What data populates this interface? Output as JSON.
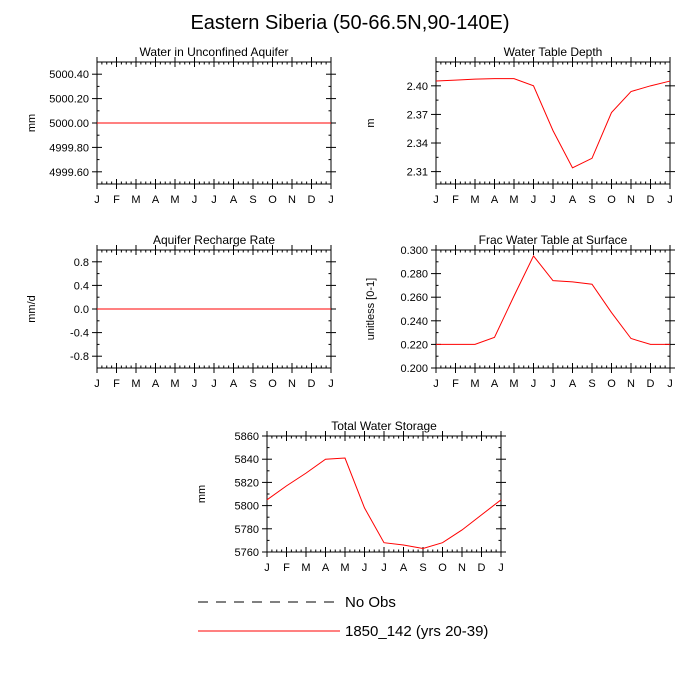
{
  "figure": {
    "title": "Eastern Siberia (50-66.5N,90-140E)"
  },
  "colors": {
    "model": "#ff0000",
    "obs": "#000000",
    "axis": "#000000"
  },
  "legend": {
    "entries": [
      {
        "label": "No Obs",
        "style": "dashed",
        "color": "#000000"
      },
      {
        "label": "1850_142 (yrs 20-39)",
        "style": "solid",
        "color": "#ff0000"
      }
    ]
  },
  "chart_data": [
    {
      "type": "line",
      "title": "Water in Unconfined Aquifer",
      "ylabel": "mm",
      "categories": [
        "J",
        "F",
        "M",
        "A",
        "M",
        "J",
        "J",
        "A",
        "S",
        "O",
        "N",
        "D",
        "J"
      ],
      "ylim": [
        4999.5,
        5000.5
      ],
      "yticks": [
        4999.6,
        4999.8,
        5000.0,
        5000.2,
        5000.4
      ],
      "yticklabels": [
        "4999.60",
        "4999.80",
        "5000.00",
        "5000.20",
        "5000.40"
      ],
      "series": [
        {
          "values": [
            5000.0,
            5000.0,
            5000.0,
            5000.0,
            5000.0,
            5000.0,
            5000.0,
            5000.0,
            5000.0,
            5000.0,
            5000.0,
            5000.0,
            5000.0
          ]
        }
      ]
    },
    {
      "type": "line",
      "title": "Water Table Depth",
      "ylabel": "m",
      "categories": [
        "J",
        "F",
        "M",
        "A",
        "M",
        "J",
        "J",
        "A",
        "S",
        "O",
        "N",
        "D",
        "J"
      ],
      "ylim": [
        2.297,
        2.425
      ],
      "yticks": [
        2.31,
        2.34,
        2.37,
        2.4
      ],
      "yticklabels": [
        "2.31",
        "2.34",
        "2.37",
        "2.40"
      ],
      "series": [
        {
          "values": [
            2.405,
            2.406,
            2.407,
            2.4075,
            2.4075,
            2.4,
            2.353,
            2.314,
            2.324,
            2.372,
            2.394,
            2.4,
            2.405
          ]
        }
      ]
    },
    {
      "type": "line",
      "title": "Aquifer Recharge Rate",
      "ylabel": "mm/d",
      "categories": [
        "J",
        "F",
        "M",
        "A",
        "M",
        "J",
        "J",
        "A",
        "S",
        "O",
        "N",
        "D",
        "J"
      ],
      "ylim": [
        -1.0,
        1.0
      ],
      "yticks": [
        -0.8,
        -0.4,
        0.0,
        0.4,
        0.8
      ],
      "yticklabels": [
        "-0.8",
        "-0.4",
        "0.0",
        "0.4",
        "0.8"
      ],
      "series": [
        {
          "values": [
            0,
            0,
            0,
            0,
            0,
            0,
            0,
            0,
            0,
            0,
            0,
            0,
            0
          ]
        }
      ]
    },
    {
      "type": "line",
      "title": "Frac Water Table at Surface",
      "ylabel": "unitless [0-1]",
      "categories": [
        "J",
        "F",
        "M",
        "A",
        "M",
        "J",
        "J",
        "A",
        "S",
        "O",
        "N",
        "D",
        "J"
      ],
      "ylim": [
        0.2,
        0.3
      ],
      "yticks": [
        0.2,
        0.22,
        0.24,
        0.26,
        0.28,
        0.3
      ],
      "yticklabels": [
        "0.200",
        "0.220",
        "0.240",
        "0.260",
        "0.280",
        "0.300"
      ],
      "series": [
        {
          "values": [
            0.22,
            0.22,
            0.22,
            0.226,
            0.261,
            0.295,
            0.274,
            0.273,
            0.271,
            0.247,
            0.225,
            0.22,
            0.22
          ]
        }
      ]
    },
    {
      "type": "line",
      "title": "Total Water Storage",
      "ylabel": "mm",
      "categories": [
        "J",
        "F",
        "M",
        "A",
        "M",
        "J",
        "J",
        "A",
        "S",
        "O",
        "N",
        "D",
        "J"
      ],
      "ylim": [
        5760,
        5860
      ],
      "yticks": [
        5760,
        5780,
        5800,
        5820,
        5840,
        5860
      ],
      "yticklabels": [
        "5760",
        "5780",
        "5800",
        "5820",
        "5840",
        "5860"
      ],
      "series": [
        {
          "values": [
            5805,
            5817,
            5828,
            5840,
            5841,
            5798,
            5768,
            5766,
            5763,
            5768,
            5779,
            5792,
            5805
          ]
        }
      ]
    }
  ]
}
